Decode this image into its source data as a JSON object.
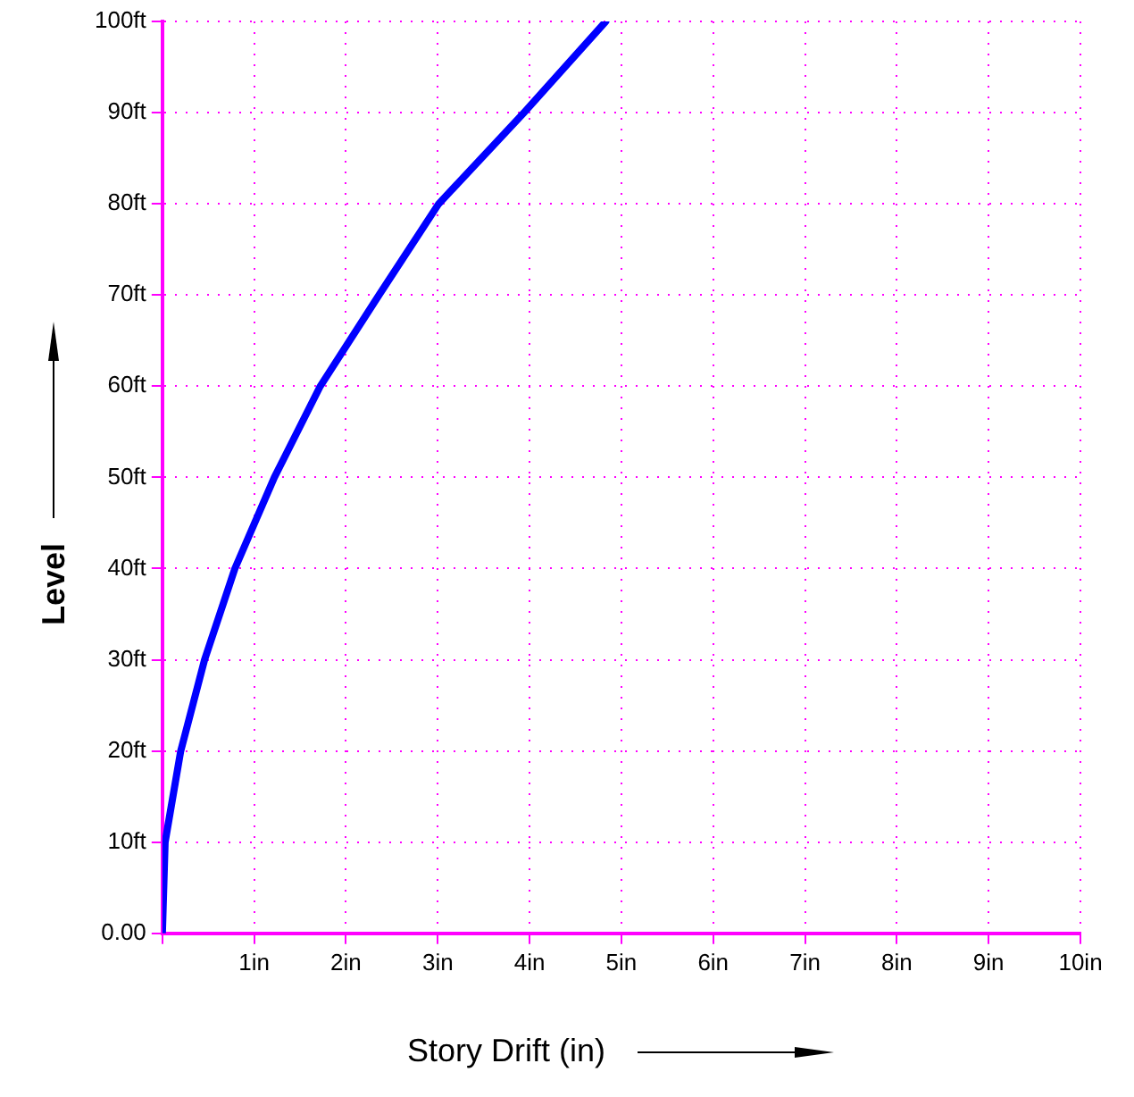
{
  "chart_data": {
    "type": "line",
    "xlabel": "Story Drift (in)",
    "ylabel": "Level",
    "x": [
      0,
      0.03,
      0.2,
      0.46,
      0.79,
      1.22,
      1.72,
      2.36,
      3.01,
      3.94,
      4.83
    ],
    "series": [
      {
        "color": "#0000ff",
        "values": [
          0,
          10,
          20,
          30,
          40,
          50,
          60,
          70,
          80,
          90,
          100
        ]
      }
    ],
    "xlim": [
      0,
      10
    ],
    "ylim": [
      0,
      100
    ],
    "xticks": [
      {
        "value": 0,
        "label": null
      },
      {
        "value": 1,
        "label": "1in"
      },
      {
        "value": 2,
        "label": "2in"
      },
      {
        "value": 3,
        "label": "3in"
      },
      {
        "value": 4,
        "label": "4in"
      },
      {
        "value": 5,
        "label": "5in"
      },
      {
        "value": 6,
        "label": "6in"
      },
      {
        "value": 7,
        "label": "7in"
      },
      {
        "value": 8,
        "label": "8in"
      },
      {
        "value": 9,
        "label": "9in"
      },
      {
        "value": 10,
        "label": "10in"
      }
    ],
    "yticks": [
      {
        "value": 0,
        "label": "0.00"
      },
      {
        "value": 10,
        "label": "10ft"
      },
      {
        "value": 20,
        "label": "20ft"
      },
      {
        "value": 30,
        "label": "30ft"
      },
      {
        "value": 40,
        "label": "40ft"
      },
      {
        "value": 50,
        "label": "50ft"
      },
      {
        "value": 60,
        "label": "60ft"
      },
      {
        "value": 70,
        "label": "70ft"
      },
      {
        "value": 80,
        "label": "80ft"
      },
      {
        "value": 90,
        "label": "90ft"
      },
      {
        "value": 100,
        "label": "100ft"
      }
    ],
    "grid": true,
    "legend": false,
    "marker": "none",
    "line_style": "solid"
  }
}
